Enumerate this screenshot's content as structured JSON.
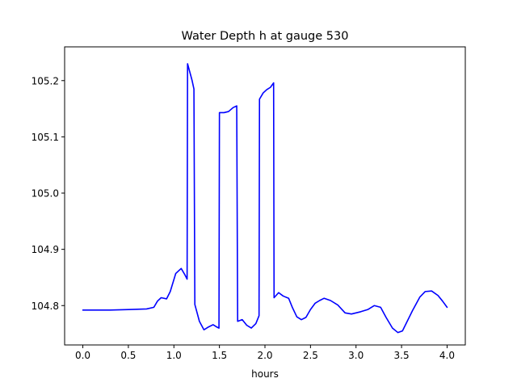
{
  "chart_data": {
    "type": "line",
    "title": "Water Depth h at gauge 530",
    "xlabel": "hours",
    "ylabel": "",
    "xlim": [
      -0.2,
      4.2
    ],
    "ylim": [
      104.73,
      105.26
    ],
    "grid": false,
    "xticks": [
      0.0,
      0.5,
      1.0,
      1.5,
      2.0,
      2.5,
      3.0,
      3.5,
      4.0
    ],
    "xtick_labels": [
      "0.0",
      "0.5",
      "1.0",
      "1.5",
      "2.0",
      "2.5",
      "3.0",
      "3.5",
      "4.0"
    ],
    "yticks": [
      104.8,
      104.9,
      105.0,
      105.1,
      105.2
    ],
    "ytick_labels": [
      "104.8",
      "104.9",
      "105.0",
      "105.1",
      "105.2"
    ],
    "series": [
      {
        "color": "#0000ff",
        "x": [
          0.0,
          0.3,
          0.5,
          0.7,
          0.78,
          0.82,
          0.86,
          0.92,
          0.96,
          1.02,
          1.08,
          1.12,
          1.145,
          1.15,
          1.2,
          1.22,
          1.23,
          1.28,
          1.33,
          1.38,
          1.43,
          1.47,
          1.495,
          1.5,
          1.55,
          1.6,
          1.65,
          1.69,
          1.7,
          1.75,
          1.8,
          1.85,
          1.9,
          1.935,
          1.94,
          1.98,
          2.02,
          2.06,
          2.095,
          2.1,
          2.15,
          2.2,
          2.26,
          2.3,
          2.35,
          2.4,
          2.45,
          2.5,
          2.55,
          2.6,
          2.65,
          2.72,
          2.8,
          2.88,
          2.95,
          3.05,
          3.13,
          3.2,
          3.27,
          3.33,
          3.4,
          3.46,
          3.51,
          3.55,
          3.62,
          3.7,
          3.76,
          3.83,
          3.9,
          3.95,
          4.0
        ],
        "y": [
          104.792,
          104.792,
          104.793,
          104.794,
          104.797,
          104.808,
          104.814,
          104.812,
          104.825,
          104.857,
          104.866,
          104.855,
          104.847,
          105.23,
          105.2,
          105.185,
          104.802,
          104.772,
          104.757,
          104.762,
          104.766,
          104.762,
          104.76,
          105.143,
          105.143,
          105.145,
          105.152,
          105.155,
          104.772,
          104.775,
          104.765,
          104.76,
          104.768,
          104.782,
          105.167,
          105.178,
          105.184,
          105.188,
          105.196,
          104.814,
          104.823,
          104.817,
          104.813,
          104.797,
          104.78,
          104.775,
          104.779,
          104.793,
          104.804,
          104.809,
          104.813,
          104.809,
          104.801,
          104.787,
          104.785,
          104.789,
          104.793,
          104.8,
          104.797,
          104.779,
          104.76,
          104.752,
          104.755,
          104.768,
          104.791,
          104.815,
          104.825,
          104.826,
          104.818,
          104.808,
          104.797
        ]
      }
    ]
  }
}
